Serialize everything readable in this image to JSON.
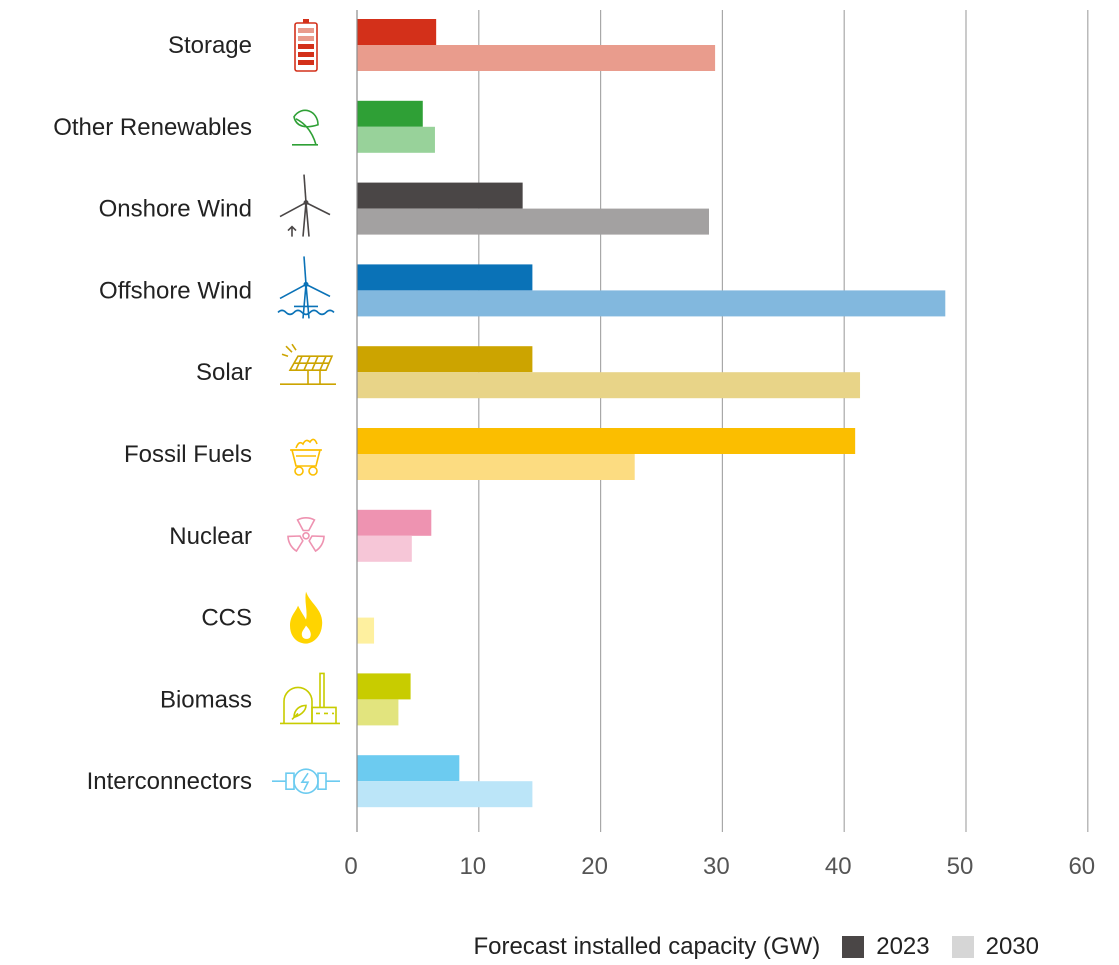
{
  "chart_data": {
    "type": "bar",
    "orientation": "horizontal",
    "categories": [
      "Storage",
      "Other Renewables",
      "Onshore Wind",
      "Offshore Wind",
      "Solar",
      "Fossil Fuels",
      "Nuclear",
      "CCS",
      "Biomass",
      "Interconnectors"
    ],
    "category_icons": [
      "battery-icon",
      "leaf-icon",
      "wind-turbine-icon",
      "offshore-wind-turbine-icon",
      "solar-panel-icon",
      "coal-cart-icon",
      "radiation-icon",
      "flame-icon",
      "biomass-plant-icon",
      "interconnector-icon"
    ],
    "series": [
      {
        "name": "2023",
        "values": [
          6.5,
          5.4,
          13.6,
          14.4,
          14.4,
          40.9,
          6.1,
          0,
          4.4,
          8.4
        ]
      },
      {
        "name": "2030",
        "values": [
          29.4,
          6.4,
          28.9,
          48.3,
          41.3,
          22.8,
          4.5,
          1.4,
          3.4,
          14.4
        ]
      }
    ],
    "colors_2023": [
      "#d3301a",
      "#2fa036",
      "#4a4646",
      "#0a72b7",
      "#cca400",
      "#fbbe00",
      "#ee93b1",
      "#fce06b",
      "#c8cc00",
      "#6ccbf0"
    ],
    "colors_2030": [
      "#e99c8d",
      "#98d29a",
      "#a3a1a1",
      "#82b8de",
      "#e8d488",
      "#fcdc81",
      "#f6c6d7",
      "#fef09f",
      "#e2e47e",
      "#bbe5f8"
    ],
    "xlim": [
      0,
      60
    ],
    "xticks": [
      0,
      10,
      20,
      30,
      40,
      50,
      60
    ],
    "grid": true,
    "legend": {
      "position": "bottom-right",
      "title": "Forecast installed capacity (GW)",
      "items": [
        {
          "label": "2023",
          "color": "#4a4646"
        },
        {
          "label": "2030",
          "color": "#d6d6d6"
        }
      ]
    }
  }
}
